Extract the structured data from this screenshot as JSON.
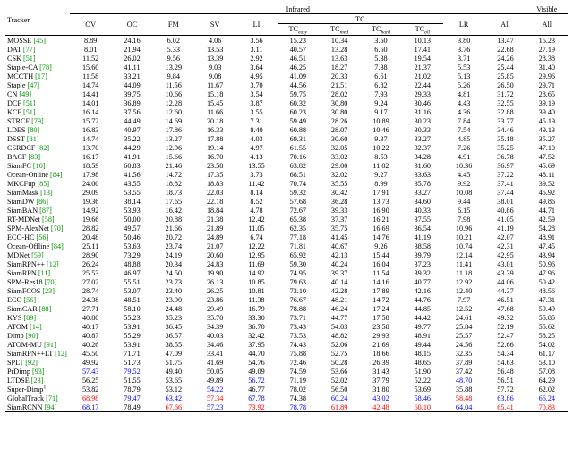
{
  "header": {
    "tracker": "Tracker",
    "infrared": "Infrared",
    "visible": "Visible",
    "cols": [
      "OV",
      "OC",
      "FM",
      "SV",
      "LI"
    ],
    "tc": "TC",
    "tc_sub": [
      "TC",
      "TC",
      "TC",
      "TC"
    ],
    "tc_suffix": [
      "easy",
      "med",
      "hard",
      "all"
    ],
    "lr": "LR",
    "all1": "All",
    "all2": "All"
  },
  "rows": [
    {
      "name": "MOSSE",
      "ref": "[45]",
      "v": [
        "8.89",
        "24.16",
        "6.02",
        "4.06",
        "3.56",
        "15.23",
        "10.34",
        "3.50",
        "10.13",
        "3.80",
        "13.47",
        "15.23"
      ]
    },
    {
      "name": "DAT",
      "ref": "[77]",
      "v": [
        "8.01",
        "21.94",
        "5.33",
        "13.53",
        "3.11",
        "40.57",
        "13.28",
        "6.50",
        "17.41",
        "3.76",
        "22.68",
        "27.19"
      ]
    },
    {
      "name": "CSK",
      "ref": "[51]",
      "v": [
        "11.52",
        "26.02",
        "9.56",
        "13.39",
        "2.92",
        "46.51",
        "13.63",
        "5.38",
        "19.54",
        "3.71",
        "24.26",
        "28.38"
      ]
    },
    {
      "name": "Staple-CA",
      "ref": "[78]",
      "v": [
        "15.60",
        "41.11",
        "13.29",
        "9.03",
        "3.64",
        "46.25",
        "18.27",
        "7.38",
        "21.37",
        "5.53",
        "25.44",
        "31.40"
      ]
    },
    {
      "name": "MCCTH",
      "ref": "[17]",
      "v": [
        "11.58",
        "33.21",
        "9.84",
        "9.08",
        "4.95",
        "41.09",
        "20.33",
        "6.61",
        "21.02",
        "5.13",
        "25.85",
        "29.96"
      ]
    },
    {
      "name": "Staple",
      "ref": "[47]",
      "v": [
        "14.74",
        "44.09",
        "11.56",
        "11.67",
        "3.70",
        "44.56",
        "21.51",
        "6.82",
        "22.44",
        "5.26",
        "26.50",
        "29.71"
      ]
    },
    {
      "name": "CN",
      "ref": "[49]",
      "v": [
        "14.41",
        "39.75",
        "10.66",
        "15.18",
        "3.54",
        "59.75",
        "28.02",
        "7.93",
        "29.33",
        "4.81",
        "31.72",
        "28.65"
      ]
    },
    {
      "name": "DCF",
      "ref": "[51]",
      "v": [
        "14.01",
        "36.89",
        "12.28",
        "15.45",
        "3.87",
        "60.32",
        "30.80",
        "9.24",
        "30.46",
        "4.43",
        "32.55",
        "39.19"
      ]
    },
    {
      "name": "KCF",
      "ref": "[51]",
      "v": [
        "16.14",
        "37.56",
        "12.60",
        "11.66",
        "3.55",
        "60.23",
        "30.80",
        "9.17",
        "31.16",
        "4.36",
        "32.88",
        "39.40"
      ]
    },
    {
      "name": "STRCF",
      "ref": "[79]",
      "v": [
        "15.72",
        "44.49",
        "14.69",
        "20.18",
        "7.31",
        "59.49",
        "28.26",
        "10.89",
        "30.23",
        "7.84",
        "33.77",
        "45.19"
      ]
    },
    {
      "name": "LDES",
      "ref": "[80]",
      "v": [
        "16.83",
        "40.97",
        "17.86",
        "16.33",
        "8.40",
        "60.88",
        "28.07",
        "10.46",
        "30.33",
        "7.54",
        "34.46",
        "49.13"
      ]
    },
    {
      "name": "DSST",
      "ref": "[81]",
      "v": [
        "14.74",
        "35.22",
        "13.27",
        "17.88",
        "4.03",
        "69.31",
        "30.60",
        "9.37",
        "33.27",
        "4.85",
        "35.18",
        "35.27"
      ]
    },
    {
      "name": "CSRDCF",
      "ref": "[82]",
      "v": [
        "13.70",
        "44.29",
        "12.96",
        "19.14",
        "4.97",
        "61.55",
        "32.05",
        "10.22",
        "32.37",
        "7.26",
        "35.25",
        "47.10"
      ]
    },
    {
      "name": "BACF",
      "ref": "[83]",
      "v": [
        "16.17",
        "41.91",
        "15.66",
        "16.70",
        "4.13",
        "70.16",
        "33.02",
        "8.53",
        "34.28",
        "4.91",
        "36.78",
        "47.52"
      ]
    },
    {
      "name": "SiamFC",
      "ref": "[10]",
      "v": [
        "18.59",
        "60.83",
        "21.46",
        "23.58",
        "13.55",
        "63.82",
        "29.00",
        "11.02",
        "31.60",
        "10.36",
        "36.97",
        "45.69"
      ]
    },
    {
      "name": "Ocean-Online",
      "ref": "[84]",
      "v": [
        "17.98",
        "41.56",
        "14.72",
        "17.35",
        "3.73",
        "68.51",
        "32.02",
        "9.27",
        "33.63",
        "4.45",
        "37.22",
        "48.11"
      ]
    },
    {
      "name": "MKCFup",
      "ref": "[85]",
      "v": [
        "24.00",
        "43.55",
        "18.82",
        "18.83",
        "11.42",
        "70.74",
        "35.55",
        "8.99",
        "35.78",
        "9.92",
        "37.41",
        "39.52"
      ]
    },
    {
      "name": "SiamMask",
      "ref": "[13]",
      "v": [
        "29.09",
        "53.55",
        "18.73",
        "22.03",
        "8.14",
        "59.32",
        "30.42",
        "17.91",
        "33.27",
        "10.08",
        "37.44",
        "45.92"
      ]
    },
    {
      "name": "SiamDW",
      "ref": "[86]",
      "v": [
        "19.36",
        "38.14",
        "17.65",
        "22.18",
        "8.52",
        "57.68",
        "36.28",
        "13.73",
        "34.60",
        "9.44",
        "38.01",
        "49.86"
      ]
    },
    {
      "name": "SiamBAN",
      "ref": "[87]",
      "v": [
        "14.92",
        "53.93",
        "16.42",
        "18.84",
        "4.78",
        "72.67",
        "39.33",
        "16.90",
        "40.33",
        "6.15",
        "40.86",
        "44.71"
      ]
    },
    {
      "name": "RT-MDNet",
      "ref": "[58]",
      "v": [
        "19.66",
        "50.00",
        "20.88",
        "21.38",
        "12.42",
        "65.38",
        "37.37",
        "16.21",
        "37.55",
        "7.98",
        "41.05",
        "42.59"
      ]
    },
    {
      "name": "SPM-AlexNet",
      "ref": "[70]",
      "v": [
        "28.82",
        "49.57",
        "21.66",
        "21.89",
        "11.05",
        "62.35",
        "35.75",
        "16.69",
        "36.54",
        "10.96",
        "41.19",
        "54.28"
      ]
    },
    {
      "name": "ECO-HC",
      "ref": "[56]",
      "v": [
        "20.48",
        "50.46",
        "20.72",
        "24.89",
        "6.74",
        "77.18",
        "41.45",
        "14.76",
        "41.19",
        "10.21",
        "42.07",
        "48.91"
      ]
    },
    {
      "name": "Ocean-Offline",
      "ref": "[84]",
      "v": [
        "25.11",
        "53.63",
        "23.74",
        "21.07",
        "12.22",
        "71.81",
        "40.67",
        "9.26",
        "38.58",
        "10.74",
        "42.31",
        "47.45"
      ]
    },
    {
      "name": "MDNet",
      "ref": "[59]",
      "v": [
        "28.90",
        "73.29",
        "24.19",
        "20.60",
        "12.95",
        "65.92",
        "42.13",
        "15.44",
        "39.79",
        "12.14",
        "42.95",
        "43.94"
      ]
    },
    {
      "name": "SiamRPN++",
      "ref": "[12]",
      "v": [
        "26.24",
        "48.88",
        "20.34",
        "24.83",
        "11.69",
        "59.30",
        "40.24",
        "16.04",
        "37.23",
        "11.41",
        "43.01",
        "50.96"
      ]
    },
    {
      "name": "SiamRPN",
      "ref": "[11]",
      "v": [
        "25.53",
        "46.97",
        "24.50",
        "19.90",
        "14.92",
        "74.95",
        "39.37",
        "11.54",
        "39.32",
        "11.18",
        "43.39",
        "47.96"
      ]
    },
    {
      "name": "SPM-Res18",
      "ref": "[70]",
      "v": [
        "27.02",
        "55.51",
        "23.73",
        "26.13",
        "10.85",
        "79.63",
        "40.14",
        "14.16",
        "40.77",
        "12.92",
        "44.06",
        "50.42"
      ]
    },
    {
      "name": "SiamFCOS",
      "ref": "[23]",
      "v": [
        "28.74",
        "53.07",
        "23.40",
        "26.25",
        "10.81",
        "73.10",
        "42.28",
        "17.89",
        "42.16",
        "12.40",
        "44.37",
        "48.56"
      ]
    },
    {
      "name": "ECO",
      "ref": "[56]",
      "v": [
        "24.38",
        "48.51",
        "23.90",
        "23.86",
        "11.38",
        "76.67",
        "48.21",
        "14.72",
        "44.76",
        "7.97",
        "46.51",
        "47.31"
      ]
    },
    {
      "name": "SiamCAR",
      "ref": "[88]",
      "v": [
        "27.71",
        "58.10",
        "24.48",
        "29.49",
        "16.79",
        "78.88",
        "46.24",
        "17.24",
        "44.85",
        "12.52",
        "47.68",
        "59.49"
      ]
    },
    {
      "name": "KYS",
      "ref": "[89]",
      "v": [
        "40.80",
        "55.23",
        "35.23",
        "35.70",
        "33.30",
        "73.71",
        "44.77",
        "17.58",
        "44.42",
        "24.61",
        "49.32",
        "55.85"
      ]
    },
    {
      "name": "ATOM",
      "ref": "[14]",
      "v": [
        "40.17",
        "53.91",
        "36.45",
        "34.39",
        "36.70",
        "73.43",
        "54.03",
        "23.58",
        "49.77",
        "25.84",
        "52.19",
        "55.62"
      ]
    },
    {
      "name": "Dimp",
      "ref": "[90]",
      "v": [
        "40.87",
        "55.29",
        "36.57",
        "40.03",
        "32.42",
        "73.53",
        "48.82",
        "29.93",
        "48.91",
        "25.57",
        "52.47",
        "58.25"
      ]
    },
    {
      "name": "ATOM-MU",
      "ref": "[91]",
      "v": [
        "40.26",
        "53.91",
        "38.55",
        "34.46",
        "37.95",
        "74.43",
        "52.06",
        "21.69",
        "49.44",
        "24.56",
        "52.66",
        "54.02"
      ]
    },
    {
      "name": "SiamRPN++LT",
      "ref": "[12]",
      "v": [
        "45.50",
        "71.71",
        "47.09",
        "33.41",
        "44.70",
        "75.88",
        "52.75",
        "18.66",
        "48.15",
        "32.35",
        "54.34",
        "61.17"
      ]
    },
    {
      "name": "SPLT",
      "ref": "[92]",
      "v": [
        "49.92",
        "51.73",
        "51.75",
        "41.69",
        "54.76",
        "72.46",
        "50.28",
        "26.39",
        "48.65",
        "37.89",
        "54.63",
        "53.10"
      ]
    },
    {
      "name": "PrDimp",
      "ref": "[93]",
      "v": [
        "57.43",
        "79.52",
        "49.40",
        "50.05",
        "49.09",
        "74.59",
        "53.66",
        "31.43",
        "51.90",
        "37.42",
        "56.48",
        "57.08"
      ],
      "c": [
        "blue",
        "blue",
        "",
        "",
        "",
        "",
        "",
        "",
        "",
        "",
        "",
        ""
      ]
    },
    {
      "name": "LTDSE",
      "ref": "[23]",
      "v": [
        "56.25",
        "51.55",
        "53.65",
        "49.89",
        "56.72",
        "71.19",
        "52.02",
        "37.79",
        "52.22",
        "48.70",
        "56.51",
        "64.29"
      ],
      "c": [
        "",
        "",
        "",
        "",
        "blue",
        "",
        "",
        "",
        "",
        "blue",
        "",
        ""
      ]
    },
    {
      "name": "Super-Dimp",
      "ref": "",
      "sup": "1",
      "v": [
        "53.82",
        "78.79",
        "53.12",
        "54.22",
        "46.77",
        "78.02",
        "56.50",
        "31.80",
        "53.69",
        "35.88",
        "57.72",
        "62.02"
      ],
      "c": [
        "",
        "",
        "",
        "blue",
        "",
        "",
        "",
        "",
        "",
        "",
        "",
        ""
      ]
    },
    {
      "name": "GlobalTrack",
      "ref": "[71]",
      "v": [
        "68.98",
        "79.47",
        "63.42",
        "57.34",
        "67.78",
        "74.38",
        "60.24",
        "43.02",
        "58.46",
        "58.48",
        "63.86",
        "66.24"
      ],
      "c": [
        "red",
        "blue",
        "blue",
        "red",
        "blue",
        "",
        "blue",
        "blue",
        "blue",
        "red",
        "blue",
        "blue"
      ]
    },
    {
      "name": "SiamRCNN",
      "ref": "[94]",
      "v": [
        "68.17",
        "78.49",
        "67.66",
        "57.23",
        "73.92",
        "78.78",
        "61.89",
        "42.48",
        "60.10",
        "64.04",
        "65.41",
        "70.83"
      ],
      "c": [
        "blue",
        "",
        "red",
        "blue",
        "red",
        "blue",
        "red",
        "red",
        "red",
        "blue",
        "red",
        "red"
      ]
    }
  ]
}
